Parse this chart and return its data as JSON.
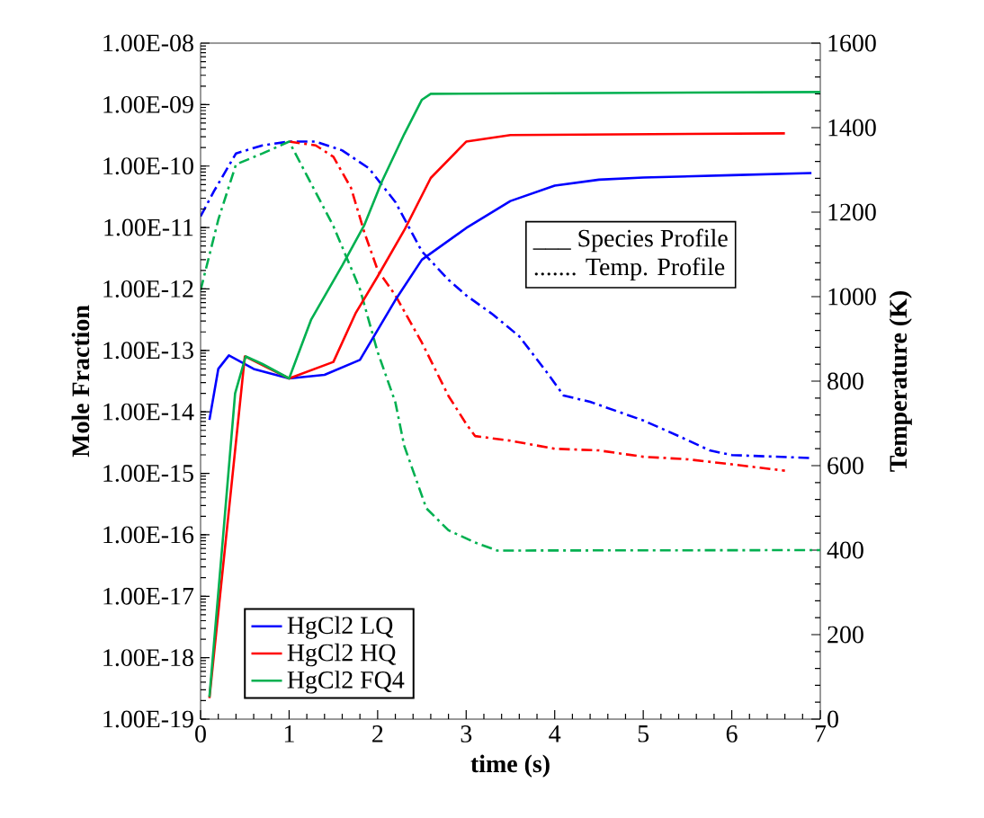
{
  "chart_data": {
    "type": "line",
    "xlabel": "time (s)",
    "ylabel": "Mole Fraction",
    "y2label": "Temperature (K)",
    "xlim": [
      0,
      7
    ],
    "xticks": [
      0,
      1,
      2,
      3,
      4,
      5,
      6,
      7
    ],
    "ylim": [
      1e-19,
      1e-08
    ],
    "log": "y",
    "yticks": [
      {
        "value": 1e-19,
        "label": "1.00E-19"
      },
      {
        "value": 1e-18,
        "label": "1.00E-18"
      },
      {
        "value": 1e-17,
        "label": "1.00E-17"
      },
      {
        "value": 1e-16,
        "label": "1.00E-16"
      },
      {
        "value": 1e-15,
        "label": "1.00E-15"
      },
      {
        "value": 1e-14,
        "label": "1.00E-14"
      },
      {
        "value": 1e-13,
        "label": "1.00E-13"
      },
      {
        "value": 1e-12,
        "label": "1.00E-12"
      },
      {
        "value": 1e-11,
        "label": "1.00E-11"
      },
      {
        "value": 1e-10,
        "label": "1.00E-10"
      },
      {
        "value": 1e-09,
        "label": "1.00E-09"
      },
      {
        "value": 1e-08,
        "label": "1.00E-08"
      }
    ],
    "y2lim": [
      0,
      1600
    ],
    "y2ticks": [
      0,
      200,
      400,
      600,
      800,
      1000,
      1200,
      1400,
      1600
    ],
    "legend": "bottom left",
    "grid": false,
    "annotations": [
      "___  Species Profile",
      "....... Temp. Profile"
    ],
    "series": [
      {
        "name": "HgCl2 LQ",
        "color": "#0000ff",
        "line_style": "solid",
        "x": [
          0.1,
          0.2,
          0.32,
          0.6,
          1,
          1.4,
          1.8,
          2.2,
          2.5,
          3,
          3.5,
          4,
          4.5,
          5,
          6,
          6.9
        ],
        "values": [
          7.4e-15,
          5e-14,
          8.3e-14,
          5e-14,
          3.5e-14,
          4e-14,
          7e-14,
          6.6e-13,
          3e-12,
          9.8e-12,
          2.7e-11,
          4.8e-11,
          6e-11,
          6.5e-11,
          7.1e-11,
          7.7e-11
        ]
      },
      {
        "name": "HgCl2 HQ",
        "color": "#ff0000",
        "line_style": "solid",
        "x": [
          0.1,
          0.25,
          0.39,
          0.5,
          0.7,
          1,
          1.5,
          1.75,
          2,
          2.3,
          2.6,
          3,
          3.5,
          6.6
        ],
        "values": [
          2.2e-19,
          null,
          null,
          8e-14,
          null,
          3.5e-14,
          6.5e-14,
          4e-13,
          1.6e-12,
          9e-12,
          6.4e-11,
          2.5e-10,
          3.2e-10,
          3.4e-10
        ]
      },
      {
        "name": "HgCl2 FQ4",
        "color": "#00b050",
        "line_style": "solid",
        "x": [
          0.1,
          0.25,
          0.39,
          0.51,
          0.7,
          1,
          1.25,
          1.6,
          1.85,
          2.05,
          2.3,
          2.5,
          2.6,
          7
        ],
        "values": [
          2.3e-19,
          8e-17,
          2e-14,
          8e-14,
          6e-14,
          3.5e-14,
          3.2e-13,
          2.4e-12,
          1.1e-11,
          5.7e-11,
          3.3e-10,
          1.2e-09,
          1.5e-09,
          1.6e-09
        ]
      },
      {
        "color": "#0000ff",
        "axis": "y2",
        "line_style": "dashdot",
        "x": [
          0,
          0.15,
          0.4,
          0.7,
          1,
          1.3,
          1.6,
          1.9,
          2.2,
          2.5,
          2.8,
          3,
          3.3,
          3.6,
          3.9,
          4.1,
          4.4,
          5,
          5.4,
          5.75,
          6,
          6.9
        ],
        "values": [
          1190,
          1249,
          1339,
          1358,
          1367,
          1367,
          1346,
          1304,
          1224,
          1107,
          1040,
          1003,
          958,
          906,
          824,
          766,
          751,
          707,
          670,
          636,
          625,
          618
        ]
      },
      {
        "color": "#ff0000",
        "axis": "y2",
        "line_style": "dashdot",
        "x": [
          1,
          1.3,
          1.5,
          1.7,
          1.85,
          2,
          2.2,
          2.5,
          2.8,
          3,
          3.1,
          3.5,
          4,
          4.5,
          5,
          5.5,
          6,
          6.6
        ],
        "values": [
          1367,
          1358,
          1331,
          1257,
          1152,
          1063,
          1003,
          891,
          765,
          699,
          670,
          659,
          640,
          636,
          621,
          615,
          603,
          588
        ]
      },
      {
        "color": "#00b050",
        "axis": "y2",
        "line_style": "dashdot",
        "x": [
          0,
          0.2,
          0.4,
          0.7,
          1,
          1.2,
          1.5,
          1.8,
          2,
          2.2,
          2.3,
          2.55,
          2.8,
          3.1,
          3.35,
          7
        ],
        "values": [
          1015,
          1182,
          1313,
          1339,
          1367,
          1287,
          1167,
          1018,
          869,
          750,
          647,
          499,
          447,
          418,
          399,
          400
        ]
      }
    ]
  }
}
